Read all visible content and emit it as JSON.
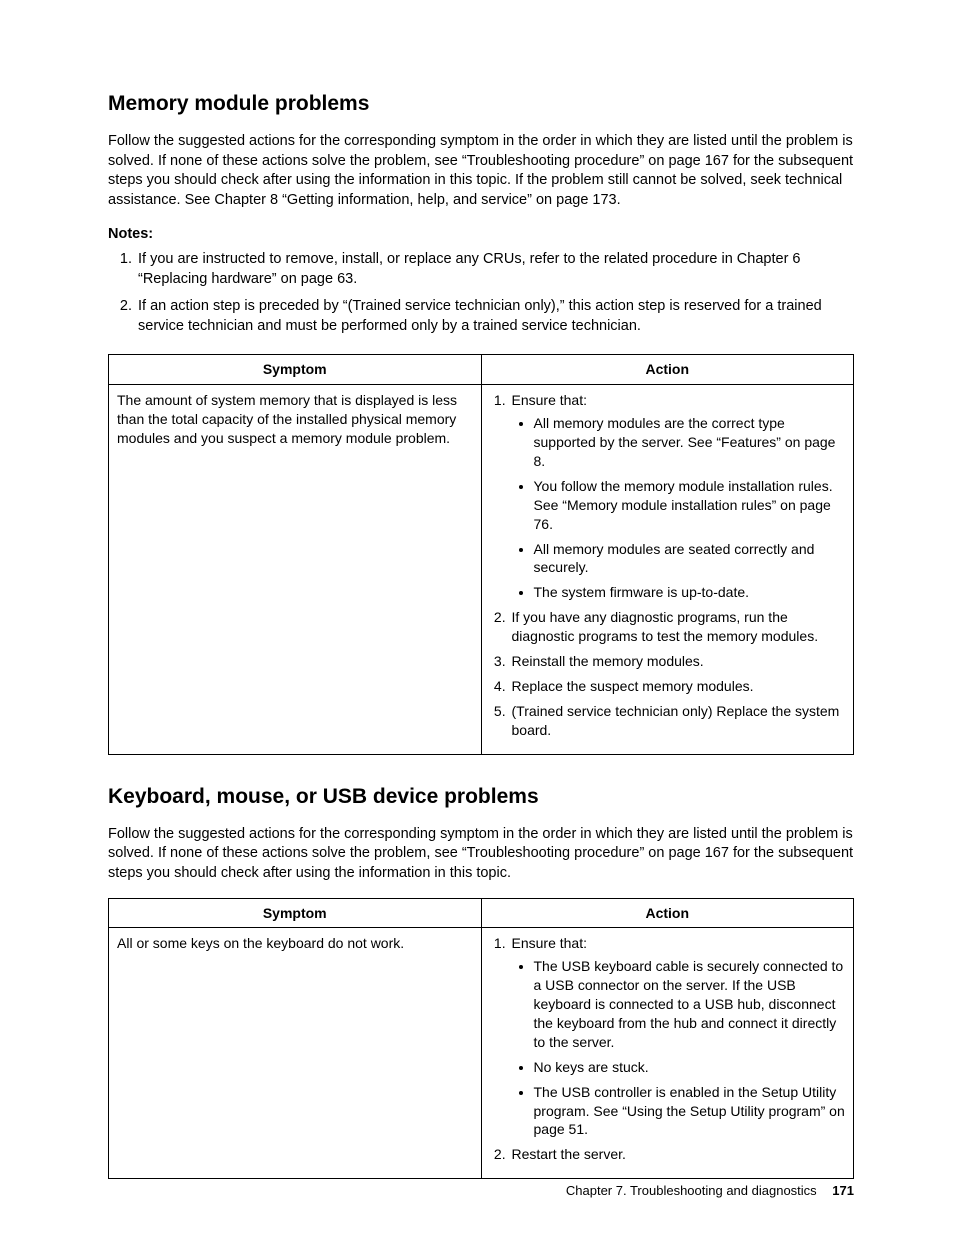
{
  "section1": {
    "heading": "Memory module problems",
    "intro": "Follow the suggested actions for the corresponding symptom in the order in which they are listed until the problem is solved. If none of these actions solve the problem, see “Troubleshooting procedure” on page 167 for the subsequent steps you should check after using the information in this topic. If the problem still cannot be solved, seek technical assistance. See Chapter 8 “Getting information, help, and service” on page 173.",
    "notes_label": "Notes:",
    "notes": [
      "If you are instructed to remove, install, or replace any CRUs, refer to the related procedure in Chapter 6 “Replacing hardware” on page 63.",
      "If an action step is preceded by “(Trained service technician only),” this action step is reserved for a trained service technician and must be performed only by a trained service technician."
    ],
    "table": {
      "columns": [
        "Symptom",
        "Action"
      ],
      "symptom": "The amount of system memory that is displayed is less than the total capacity of the installed physical memory modules and you suspect a memory module problem.",
      "action": {
        "step1_lead": "Ensure that:",
        "step1_bullets": [
          "All memory modules are the correct type supported by the server. See “Features” on page 8.",
          "You follow the memory module installation rules. See “Memory module installation rules” on page 76.",
          "All memory modules are seated correctly and securely.",
          "The system firmware is up-to-date."
        ],
        "steps_rest": [
          "If you have any diagnostic programs, run the diagnostic programs to test the memory modules.",
          "Reinstall the memory modules.",
          "Replace the suspect memory modules.",
          "(Trained service technician only) Replace the system board."
        ]
      }
    }
  },
  "section2": {
    "heading": "Keyboard, mouse, or USB device problems",
    "intro": "Follow the suggested actions for the corresponding symptom in the order in which they are listed until the problem is solved. If none of these actions solve the problem, see “Troubleshooting procedure” on page 167 for the subsequent steps you should check after using the information in this topic.",
    "table": {
      "columns": [
        "Symptom",
        "Action"
      ],
      "symptom": "All or some keys on the keyboard do not work.",
      "action": {
        "step1_lead": "Ensure that:",
        "step1_bullets": [
          "The USB keyboard cable is securely connected to a USB connector on the server. If the USB keyboard is connected to a USB hub, disconnect the keyboard from the hub and connect it directly to the server.",
          "No keys are stuck.",
          "The USB controller is enabled in the Setup Utility program. See “Using the Setup Utility program” on page 51."
        ],
        "steps_rest": [
          "Restart the server."
        ]
      }
    }
  },
  "footer": {
    "chapter": "Chapter 7. Troubleshooting and diagnostics",
    "page": "171"
  }
}
